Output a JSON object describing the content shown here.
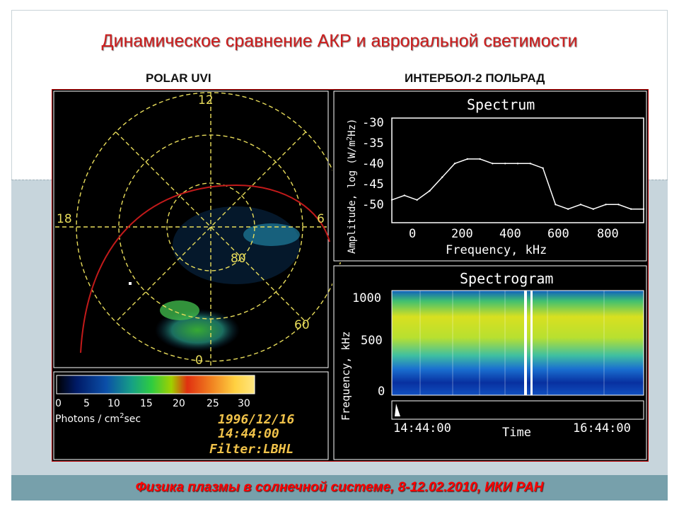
{
  "slide": {
    "title": "Динамическое сравнение АКР и авроральной светимости",
    "left_label": "POLAR UVI",
    "right_label": "ИНТЕРБОЛ-2 ПОЛЬРАД",
    "footer": "Физика плазмы в солнечной системе, 8-12.02.2010, ИКИ РАН"
  },
  "polar": {
    "mlt_labels": [
      "12",
      "18",
      "6",
      "0"
    ],
    "lat_labels": [
      "80",
      "60"
    ],
    "colorbar_ticks": [
      "0",
      "5",
      "10",
      "15",
      "20",
      "25",
      "30"
    ],
    "colorbar_label": "Photons / cm",
    "colorbar_label_sup": "2",
    "colorbar_label_tail": "sec",
    "date": "1996/12/16",
    "time": "14:44:00",
    "filter": "Filter:LBHL"
  },
  "spectrum": {
    "title": "Spectrum",
    "ylabel": "Amplitude, log (W/m",
    "ylabel_sup": "2",
    "ylabel_tail": "Hz)",
    "xlabel": "Frequency, kHz",
    "yticks": [
      "-30",
      "-35",
      "-40",
      "-45",
      "-50"
    ],
    "xticks": [
      "0",
      "200",
      "400",
      "600",
      "800"
    ]
  },
  "spectrogram": {
    "title": "Spectrogram",
    "ylabel": "Frequency, kHz",
    "yticks": [
      "1000",
      "500",
      "0"
    ],
    "xlabel": "Time",
    "t_start": "14:44:00",
    "t_end": "16:44:00"
  },
  "chart_data": {
    "type": "line",
    "title": "Spectrum",
    "xlabel": "Frequency, kHz",
    "ylabel": "Amplitude, log (W/m2 Hz)",
    "xlim": [
      0,
      1000
    ],
    "ylim": [
      -52,
      -29
    ],
    "x": [
      0,
      50,
      100,
      150,
      200,
      250,
      300,
      350,
      400,
      450,
      500,
      550,
      600,
      650,
      700,
      750,
      800,
      850,
      900,
      950,
      1000
    ],
    "y": [
      -47,
      -46,
      -47,
      -45,
      -42,
      -39,
      -38,
      -38,
      -39,
      -39,
      -39,
      -39,
      -40,
      -48,
      -49,
      -48,
      -49,
      -48,
      -48,
      -49,
      -49
    ]
  }
}
